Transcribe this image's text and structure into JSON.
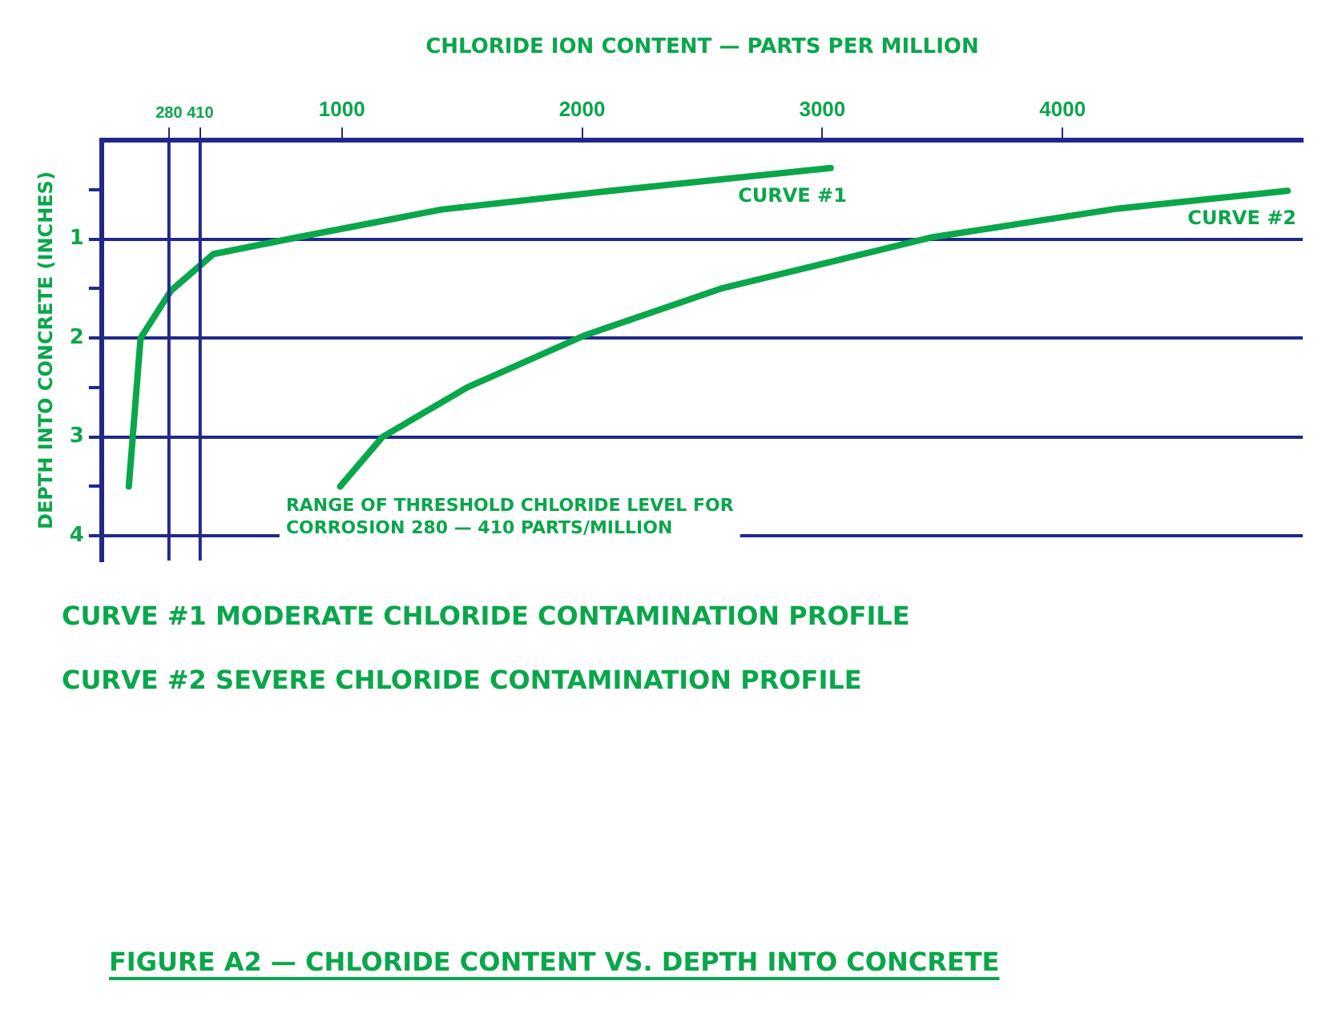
{
  "chart_data": {
    "type": "line",
    "title": "FIGURE A2 — CHLORIDE CONTENT VS. DEPTH INTO CONCRETE",
    "xlabel": "CHLORIDE ION CONTENT — PARTS PER MILLION",
    "ylabel": "DEPTH INTO CONCRETE (INCHES)",
    "xlim": [
      0,
      5000
    ],
    "xticks": [
      280,
      410,
      1000,
      2000,
      3000,
      4000
    ],
    "ylim": [
      4.25,
      0
    ],
    "yticks": [
      {
        "value": 0.5,
        "label": null
      },
      1,
      {
        "value": 1.5,
        "label": null
      },
      2,
      {
        "value": 2.5,
        "label": null
      },
      3,
      {
        "value": 3.5,
        "label": null
      },
      4
    ],
    "grid": "y",
    "marker": "none",
    "line_style": "solid",
    "legend": false,
    "series": [
      {
        "name": "CURVE #1",
        "color": "#0aa64b",
        "x": [
          113,
          162,
          289,
          465,
          817,
          1415,
          2120,
          3035
        ],
        "values": [
          3.5,
          2.0,
          1.52,
          1.15,
          0.98,
          0.7,
          0.51,
          0.28
        ]
      },
      {
        "name": "CURVE #2",
        "color": "#0aa64b",
        "x": [
          993,
          1169,
          1521,
          2014,
          2577,
          3458,
          4232,
          4937
        ],
        "values": [
          3.5,
          3.0,
          2.5,
          1.97,
          1.5,
          0.98,
          0.69,
          0.51
        ]
      }
    ],
    "ref_lines": [
      {
        "axis": "x",
        "value": 280,
        "color": "#22288a"
      },
      {
        "axis": "x",
        "value": 410,
        "color": "#22288a"
      }
    ],
    "annotations": [
      "RANGE OF THRESHOLD CHLORIDE LEVEL FOR CORROSION 280 — 410 PARTS/MILLION",
      "CURVE #1 MODERATE CHLORIDE CONTAMINATION PROFILE",
      "CURVE #2 SEVERE CHLORIDE CONTAMINATION PROFILE"
    ]
  }
}
